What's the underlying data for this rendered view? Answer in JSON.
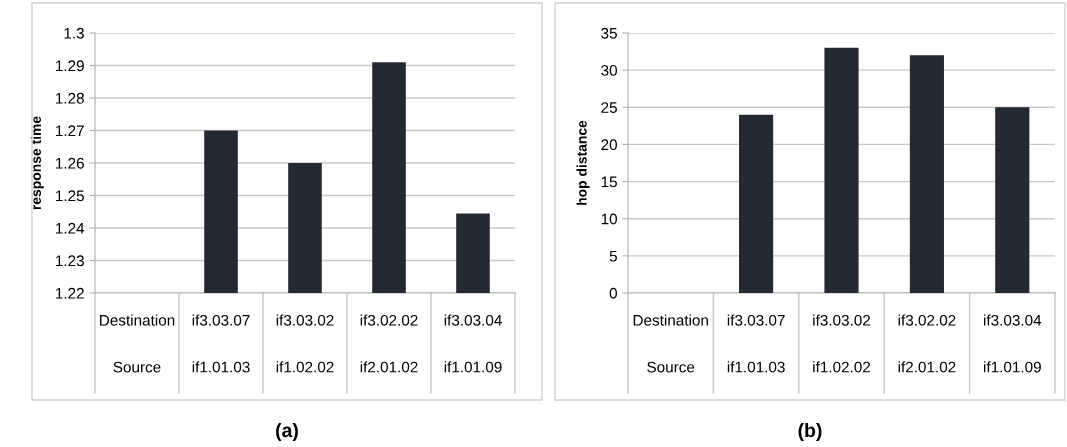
{
  "chart_data": [
    {
      "type": "bar",
      "ylabel": "response time",
      "categories": [
        null,
        "if3.03.07\nif1.01.03",
        "if3.03.02\nif1.02.02",
        "if3.02.02\nif2.01.02",
        "if3.03.04\nif1.01.09"
      ],
      "values": [
        null,
        1.27,
        1.26,
        1.291,
        1.2445
      ],
      "color": "#232a35",
      "ylim": [
        1.22,
        1.3
      ],
      "yticks": [
        {
          "value": 1.22,
          "label": "1.22"
        },
        {
          "value": 1.23,
          "label": "1.23"
        },
        {
          "value": 1.24,
          "label": "1.24"
        },
        {
          "value": 1.25,
          "label": "1.25"
        },
        {
          "value": 1.26,
          "label": "1.26"
        },
        {
          "value": 1.27,
          "label": "1.27"
        },
        {
          "value": 1.28,
          "label": "1.28"
        },
        {
          "value": 1.29,
          "label": "1.29"
        },
        {
          "value": 1.3,
          "label": "1.3"
        }
      ],
      "grid": "y",
      "annotations": [
        "Destination\nSource",
        "(a)"
      ]
    },
    {
      "type": "bar",
      "ylabel": "hop distance",
      "categories": [
        null,
        "if3.03.07\nif1.01.03",
        "if3.03.02\nif1.02.02",
        "if3.02.02\nif2.01.02",
        "if3.03.04\nif1.01.09"
      ],
      "values": [
        null,
        24,
        33,
        32,
        25
      ],
      "color": "#232a35",
      "ylim": [
        0,
        35
      ],
      "yticks": [
        0,
        5,
        10,
        15,
        20,
        25,
        30,
        35
      ],
      "grid": "y",
      "annotations": [
        "Destination\nSource",
        "(b)"
      ]
    }
  ]
}
